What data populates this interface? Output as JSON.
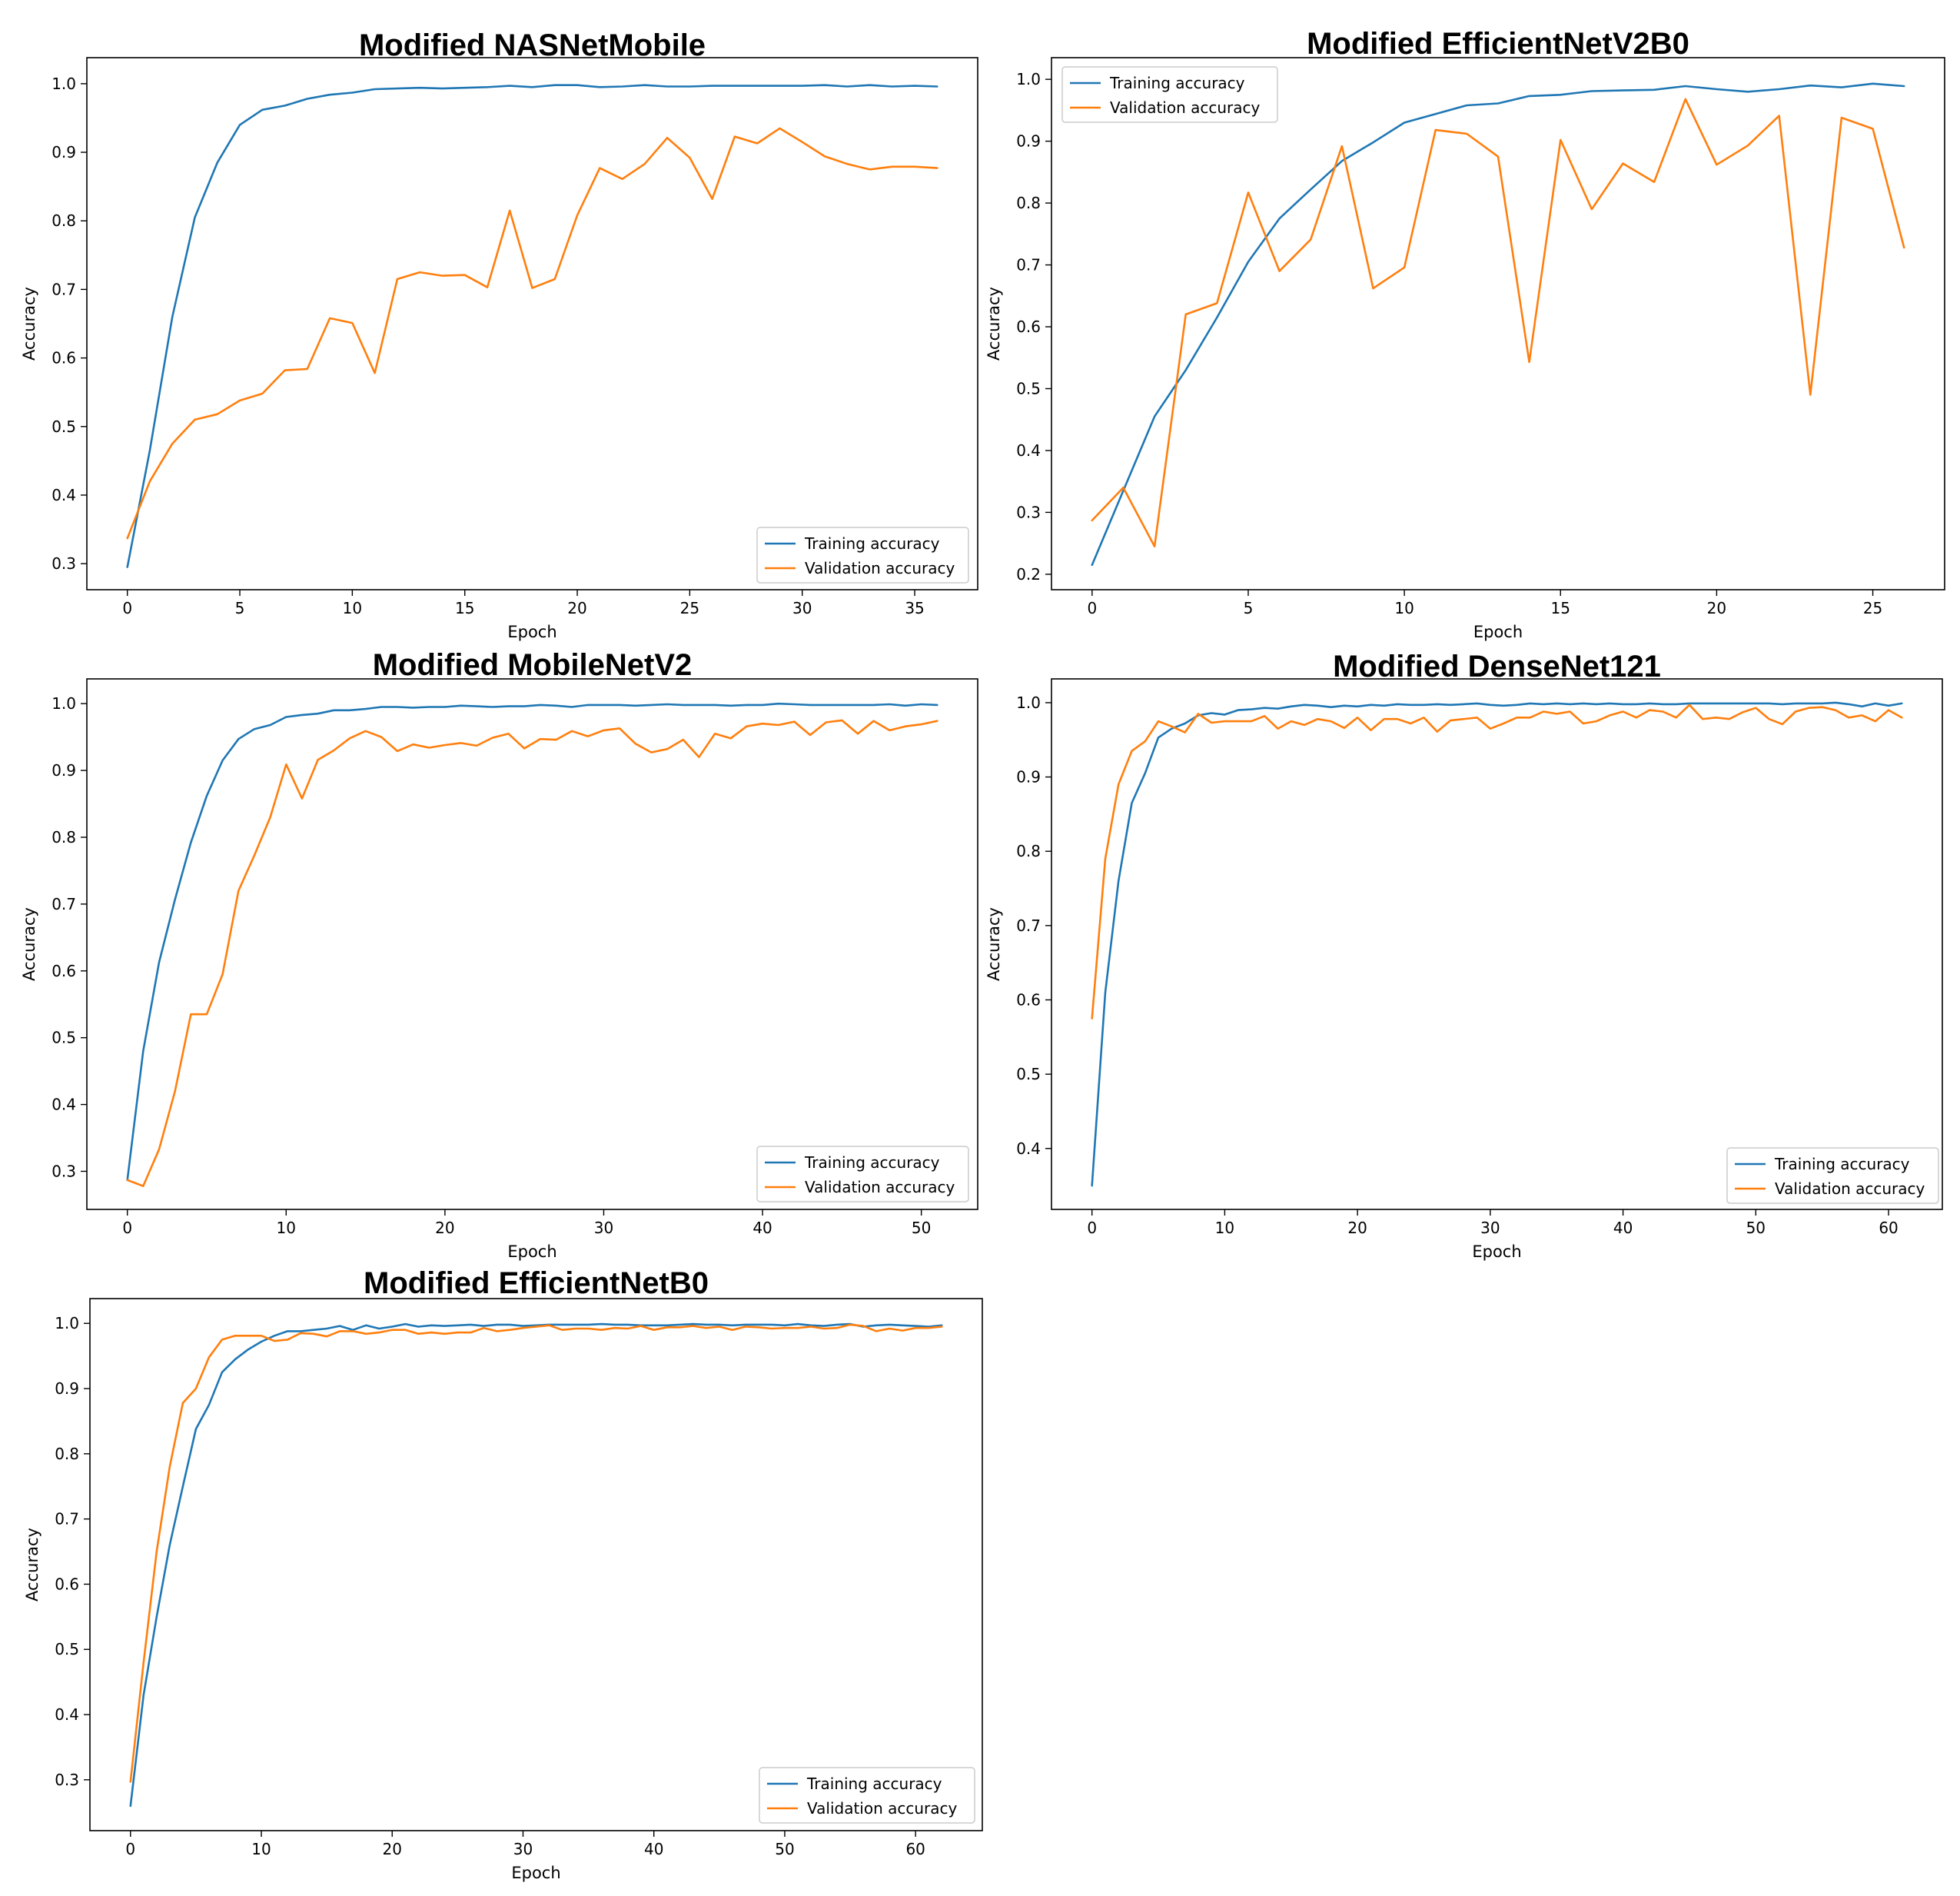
{
  "figure": {
    "legend_labels": [
      "Training accuracy",
      "Validation accuracy"
    ],
    "colors": {
      "training": "#1f77b4",
      "validation": "#ff7f0e"
    }
  },
  "chart_data": [
    {
      "type": "line",
      "title": "Modified NASNetMobile",
      "xlabel": "Epoch",
      "ylabel": "Accuracy",
      "xlim": [
        -1.8,
        37.8
      ],
      "ylim": [
        0.262,
        1.038
      ],
      "xticks": [
        0,
        5,
        10,
        15,
        20,
        25,
        30,
        35
      ],
      "yticks": [
        0.3,
        0.4,
        0.5,
        0.6,
        0.7,
        0.8,
        0.9,
        1.0
      ],
      "ytick_labels": [
        "0.3",
        "0.4",
        "0.5",
        "0.6",
        "0.7",
        "0.8",
        "0.9",
        "1.0"
      ],
      "legend_position": "lower right",
      "x": [
        0,
        1,
        2,
        3,
        4,
        5,
        6,
        7,
        8,
        9,
        10,
        11,
        12,
        13,
        14,
        15,
        16,
        17,
        18,
        19,
        20,
        21,
        22,
        23,
        24,
        25,
        26,
        27,
        28,
        29,
        30,
        31,
        32,
        33,
        34,
        35,
        36
      ],
      "series": [
        {
          "name": "Training accuracy",
          "values": [
            0.295,
            0.465,
            0.66,
            0.805,
            0.885,
            0.94,
            0.962,
            0.968,
            0.978,
            0.984,
            0.987,
            0.992,
            0.993,
            0.994,
            0.993,
            0.994,
            0.995,
            0.997,
            0.995,
            0.998,
            0.998,
            0.995,
            0.996,
            0.998,
            0.996,
            0.996,
            0.997,
            0.997,
            0.997,
            0.997,
            0.997,
            0.998,
            0.996,
            0.998,
            0.996,
            0.997,
            0.996
          ]
        },
        {
          "name": "Validation accuracy",
          "values": [
            0.337,
            0.42,
            0.475,
            0.51,
            0.518,
            0.538,
            0.548,
            0.582,
            0.584,
            0.658,
            0.651,
            0.578,
            0.715,
            0.725,
            0.72,
            0.721,
            0.703,
            0.815,
            0.702,
            0.715,
            0.808,
            0.877,
            0.861,
            0.883,
            0.921,
            0.892,
            0.832,
            0.923,
            0.913,
            0.935,
            0.915,
            0.894,
            0.883,
            0.875,
            0.879,
            0.879,
            0.877
          ]
        }
      ]
    },
    {
      "type": "line",
      "title": "Modified EfficientNetV2B0",
      "xlabel": "Epoch",
      "ylabel": "Accuracy",
      "xlim": [
        -1.3,
        27.3
      ],
      "ylim": [
        0.175,
        1.035
      ],
      "xticks": [
        0,
        5,
        10,
        15,
        20,
        25
      ],
      "yticks": [
        0.2,
        0.3,
        0.4,
        0.5,
        0.6,
        0.7,
        0.8,
        0.9,
        1.0
      ],
      "ytick_labels": [
        "0.2",
        "0.3",
        "0.4",
        "0.5",
        "0.6",
        "0.7",
        "0.8",
        "0.9",
        "1.0"
      ],
      "legend_position": "upper left",
      "x": [
        0,
        1,
        2,
        3,
        4,
        5,
        6,
        7,
        8,
        9,
        10,
        11,
        12,
        13,
        14,
        15,
        16,
        17,
        18,
        19,
        20,
        21,
        22,
        23,
        24,
        25,
        26
      ],
      "series": [
        {
          "name": "Training accuracy",
          "values": [
            0.215,
            0.335,
            0.455,
            0.53,
            0.615,
            0.705,
            0.775,
            0.822,
            0.868,
            0.898,
            0.93,
            0.944,
            0.958,
            0.961,
            0.973,
            0.975,
            0.981,
            0.982,
            0.983,
            0.989,
            0.984,
            0.98,
            0.984,
            0.99,
            0.987,
            0.993,
            0.989
          ]
        },
        {
          "name": "Validation accuracy",
          "values": [
            0.287,
            0.34,
            0.245,
            0.62,
            0.638,
            0.817,
            0.69,
            0.741,
            0.892,
            0.662,
            0.696,
            0.918,
            0.912,
            0.875,
            0.543,
            0.902,
            0.79,
            0.864,
            0.834,
            0.968,
            0.862,
            0.893,
            0.941,
            0.49,
            0.938,
            0.92,
            0.728
          ]
        }
      ]
    },
    {
      "type": "line",
      "title": "Modified MobileNetV2",
      "xlabel": "Epoch",
      "ylabel": "Accuracy",
      "xlim": [
        -2.55,
        53.55
      ],
      "ylim": [
        0.243,
        1.037
      ],
      "xticks": [
        0,
        10,
        20,
        30,
        40,
        50
      ],
      "yticks": [
        0.3,
        0.4,
        0.5,
        0.6,
        0.7,
        0.8,
        0.9,
        1.0
      ],
      "ytick_labels": [
        "0.3",
        "0.4",
        "0.5",
        "0.6",
        "0.7",
        "0.8",
        "0.9",
        "1.0"
      ],
      "legend_position": "lower right",
      "x": [
        0,
        1,
        2,
        3,
        4,
        5,
        6,
        7,
        8,
        9,
        10,
        11,
        12,
        13,
        14,
        15,
        16,
        17,
        18,
        19,
        20,
        21,
        22,
        23,
        24,
        25,
        26,
        27,
        28,
        29,
        30,
        31,
        32,
        33,
        34,
        35,
        36,
        37,
        38,
        39,
        40,
        41,
        42,
        43,
        44,
        45,
        46,
        47,
        48,
        49,
        50,
        51
      ],
      "series": [
        {
          "name": "Training accuracy",
          "values": [
            0.287,
            0.48,
            0.613,
            0.707,
            0.792,
            0.862,
            0.915,
            0.947,
            0.962,
            0.968,
            0.98,
            0.983,
            0.985,
            0.99,
            0.99,
            0.992,
            0.995,
            0.995,
            0.994,
            0.995,
            0.995,
            0.997,
            0.996,
            0.995,
            0.996,
            0.996,
            0.998,
            0.997,
            0.995,
            0.998,
            0.998,
            0.998,
            0.997,
            0.998,
            0.999,
            0.998,
            0.998,
            0.998,
            0.997,
            0.998,
            0.998,
            1.0,
            0.999,
            0.998,
            0.998,
            0.998,
            0.998,
            0.998,
            0.999,
            0.997,
            0.999,
            0.998
          ]
        },
        {
          "name": "Validation accuracy",
          "values": [
            0.287,
            0.278,
            0.333,
            0.42,
            0.535,
            0.535,
            0.595,
            0.72,
            0.773,
            0.83,
            0.909,
            0.858,
            0.916,
            0.93,
            0.948,
            0.959,
            0.95,
            0.929,
            0.939,
            0.934,
            0.938,
            0.941,
            0.937,
            0.949,
            0.955,
            0.933,
            0.947,
            0.946,
            0.959,
            0.951,
            0.96,
            0.963,
            0.94,
            0.927,
            0.932,
            0.946,
            0.92,
            0.955,
            0.948,
            0.966,
            0.97,
            0.968,
            0.973,
            0.953,
            0.972,
            0.975,
            0.955,
            0.974,
            0.96,
            0.966,
            0.969,
            0.974
          ]
        }
      ]
    },
    {
      "type": "line",
      "title": "Modified DenseNet121",
      "xlabel": "Epoch",
      "ylabel": "Accuracy",
      "xlim": [
        -3.05,
        64.05
      ],
      "ylim": [
        0.318,
        1.032
      ],
      "xticks": [
        0,
        10,
        20,
        30,
        40,
        50,
        60
      ],
      "yticks": [
        0.4,
        0.5,
        0.6,
        0.7,
        0.8,
        0.9,
        1.0
      ],
      "ytick_labels": [
        "0.4",
        "0.5",
        "0.6",
        "0.7",
        "0.8",
        "0.9",
        "1.0"
      ],
      "legend_position": "lower right",
      "x": [
        0,
        1,
        2,
        3,
        4,
        5,
        6,
        7,
        8,
        9,
        10,
        11,
        12,
        13,
        14,
        15,
        16,
        17,
        18,
        19,
        20,
        21,
        22,
        23,
        24,
        25,
        26,
        27,
        28,
        29,
        30,
        31,
        32,
        33,
        34,
        35,
        36,
        37,
        38,
        39,
        40,
        41,
        42,
        43,
        44,
        45,
        46,
        47,
        48,
        49,
        50,
        51,
        52,
        53,
        54,
        55,
        56,
        57,
        58,
        59,
        60,
        61
      ],
      "series": [
        {
          "name": "Training accuracy",
          "values": [
            0.35,
            0.61,
            0.76,
            0.865,
            0.905,
            0.953,
            0.965,
            0.972,
            0.983,
            0.986,
            0.984,
            0.99,
            0.991,
            0.993,
            0.992,
            0.995,
            0.997,
            0.996,
            0.994,
            0.996,
            0.995,
            0.997,
            0.996,
            0.998,
            0.997,
            0.997,
            0.998,
            0.997,
            0.998,
            0.999,
            0.997,
            0.996,
            0.997,
            0.999,
            0.998,
            0.999,
            0.998,
            0.999,
            0.998,
            0.999,
            0.998,
            0.998,
            0.999,
            0.998,
            0.998,
            0.999,
            0.999,
            0.999,
            0.999,
            0.999,
            0.999,
            0.999,
            0.998,
            0.999,
            0.999,
            0.999,
            1.0,
            0.998,
            0.995,
            0.999,
            0.996,
            0.999
          ]
        },
        {
          "name": "Validation accuracy",
          "values": [
            0.575,
            0.79,
            0.89,
            0.935,
            0.948,
            0.975,
            0.968,
            0.96,
            0.985,
            0.973,
            0.975,
            0.975,
            0.975,
            0.982,
            0.965,
            0.975,
            0.97,
            0.978,
            0.975,
            0.966,
            0.98,
            0.963,
            0.978,
            0.978,
            0.972,
            0.98,
            0.961,
            0.976,
            0.978,
            0.98,
            0.965,
            0.972,
            0.98,
            0.98,
            0.988,
            0.985,
            0.988,
            0.972,
            0.975,
            0.983,
            0.988,
            0.98,
            0.99,
            0.988,
            0.98,
            0.997,
            0.978,
            0.98,
            0.978,
            0.987,
            0.993,
            0.978,
            0.971,
            0.988,
            0.993,
            0.994,
            0.99,
            0.98,
            0.983,
            0.975,
            0.99,
            0.98
          ]
        }
      ]
    },
    {
      "type": "line",
      "title": "Modified EfficientNetB0",
      "xlabel": "Epoch",
      "ylabel": "Accuracy",
      "xlim": [
        -3.1,
        65.1
      ],
      "ylim": [
        0.222,
        1.038
      ],
      "xticks": [
        0,
        10,
        20,
        30,
        40,
        50,
        60
      ],
      "yticks": [
        0.3,
        0.4,
        0.5,
        0.6,
        0.7,
        0.8,
        0.9,
        1.0
      ],
      "ytick_labels": [
        "0.3",
        "0.4",
        "0.5",
        "0.6",
        "0.7",
        "0.8",
        "0.9",
        "1.0"
      ],
      "legend_position": "lower right",
      "x": [
        0,
        1,
        2,
        3,
        4,
        5,
        6,
        7,
        8,
        9,
        10,
        11,
        12,
        13,
        14,
        15,
        16,
        17,
        18,
        19,
        20,
        21,
        22,
        23,
        24,
        25,
        26,
        27,
        28,
        29,
        30,
        31,
        32,
        33,
        34,
        35,
        36,
        37,
        38,
        39,
        40,
        41,
        42,
        43,
        44,
        45,
        46,
        47,
        48,
        49,
        50,
        51,
        52,
        53,
        54,
        55,
        56,
        57,
        58,
        59,
        60,
        61,
        62
      ],
      "series": [
        {
          "name": "Training accuracy",
          "values": [
            0.26,
            0.43,
            0.55,
            0.66,
            0.75,
            0.838,
            0.875,
            0.925,
            0.945,
            0.96,
            0.972,
            0.981,
            0.988,
            0.988,
            0.99,
            0.992,
            0.996,
            0.99,
            0.997,
            0.992,
            0.995,
            0.999,
            0.995,
            0.997,
            0.996,
            0.997,
            0.998,
            0.996,
            0.998,
            0.998,
            0.996,
            0.997,
            0.998,
            0.998,
            0.998,
            0.998,
            0.999,
            0.998,
            0.998,
            0.997,
            0.997,
            0.997,
            0.998,
            0.999,
            0.998,
            0.998,
            0.997,
            0.998,
            0.998,
            0.998,
            0.997,
            0.999,
            0.997,
            0.996,
            0.998,
            0.999,
            0.995,
            0.997,
            0.998,
            0.997,
            0.996,
            0.995,
            0.997
          ]
        },
        {
          "name": "Validation accuracy",
          "values": [
            0.297,
            0.48,
            0.65,
            0.78,
            0.878,
            0.9,
            0.948,
            0.975,
            0.981,
            0.981,
            0.981,
            0.973,
            0.975,
            0.985,
            0.984,
            0.98,
            0.988,
            0.988,
            0.984,
            0.986,
            0.99,
            0.99,
            0.984,
            0.986,
            0.984,
            0.986,
            0.986,
            0.993,
            0.988,
            0.99,
            0.993,
            0.995,
            0.997,
            0.99,
            0.992,
            0.992,
            0.99,
            0.993,
            0.992,
            0.996,
            0.99,
            0.994,
            0.994,
            0.996,
            0.993,
            0.995,
            0.99,
            0.995,
            0.994,
            0.992,
            0.993,
            0.993,
            0.995,
            0.992,
            0.993,
            0.998,
            0.996,
            0.988,
            0.992,
            0.989,
            0.993,
            0.993,
            0.995
          ]
        }
      ]
    }
  ]
}
